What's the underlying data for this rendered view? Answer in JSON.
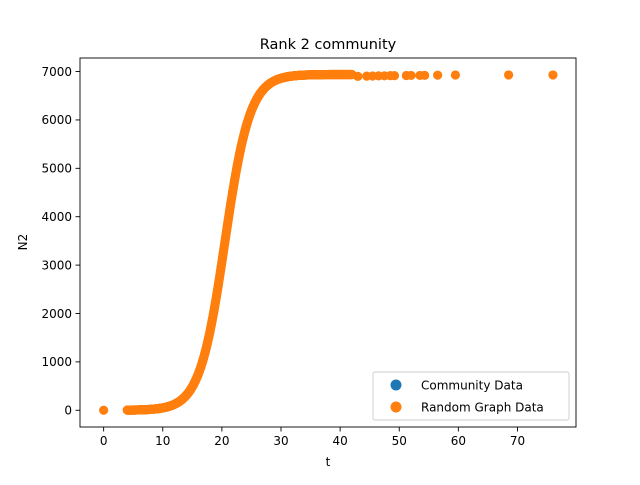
{
  "chart_data": {
    "type": "scatter",
    "title": "Rank 2 community",
    "xlabel": "t",
    "ylabel": "N2",
    "xlim": [
      -4.0,
      79.9
    ],
    "ylim": [
      -346,
      7280
    ],
    "xticks": [
      0,
      10,
      20,
      30,
      40,
      50,
      60,
      70
    ],
    "yticks": [
      0,
      1000,
      2000,
      3000,
      4000,
      5000,
      6000,
      7000
    ],
    "grid": false,
    "legend_position": "lower-right",
    "series": [
      {
        "name": "Community Data",
        "color": "#1f77b4",
        "points": []
      },
      {
        "name": "Random Graph Data",
        "color": "#ff7f0e",
        "logistic_curve": {
          "K": 6940,
          "r": 0.47,
          "t0": 20.5,
          "t_start": 4.0,
          "t_end": 42.0,
          "step": 0.05
        },
        "points": [
          [
            0.0,
            0
          ],
          [
            4.0,
            5
          ],
          [
            5.0,
            6
          ],
          [
            6.0,
            10
          ],
          [
            7.0,
            15
          ],
          [
            43.0,
            6900
          ],
          [
            44.5,
            6905
          ],
          [
            45.5,
            6908
          ],
          [
            46.5,
            6910
          ],
          [
            47.5,
            6912
          ],
          [
            48.5,
            6915
          ],
          [
            49.2,
            6915
          ],
          [
            51.2,
            6918
          ],
          [
            52.0,
            6920
          ],
          [
            53.5,
            6920
          ],
          [
            54.3,
            6922
          ],
          [
            56.5,
            6925
          ],
          [
            59.5,
            6928
          ],
          [
            68.5,
            6930
          ],
          [
            76.0,
            6930
          ]
        ]
      }
    ]
  }
}
